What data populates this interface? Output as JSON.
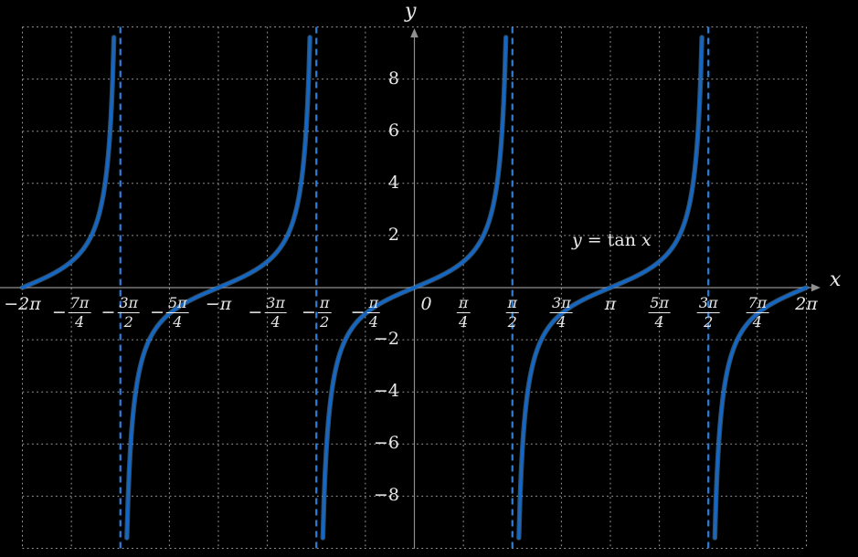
{
  "figure": {
    "background": "#000000",
    "annotation": {
      "lhs": "y",
      "eq": " = ",
      "func": "tan ",
      "arg": "x"
    }
  },
  "chart_data": {
    "type": "line",
    "title": "",
    "function": "y = tan(x)",
    "annotation_text": "y = tan x",
    "annotation_position": "right of y-axis, above x-axis, near x = 3π/4 .. π",
    "xlabel": "x",
    "ylabel": "y",
    "xlim_pi_units": [
      -2,
      2
    ],
    "ylim": [
      -10,
      10
    ],
    "clip_abs_y": 9.6,
    "grid": {
      "on": true,
      "x_step_pi_units": 0.25,
      "y_step": 2,
      "style": "dotted"
    },
    "legend_position": "none",
    "asymptotes_pi_units": [
      -1.5,
      -0.5,
      0.5,
      1.5
    ],
    "branch_domains_pi_units": [
      [
        -2,
        -1.5
      ],
      [
        -1.5,
        -0.5
      ],
      [
        -0.5,
        0.5
      ],
      [
        0.5,
        1.5
      ],
      [
        1.5,
        2
      ]
    ],
    "key_points_pi_units": [
      [
        -2,
        0
      ],
      [
        -1.75,
        1
      ],
      [
        -1.25,
        -1
      ],
      [
        -1,
        0
      ],
      [
        -0.75,
        1
      ],
      [
        -0.25,
        -1
      ],
      [
        0,
        0
      ],
      [
        0.25,
        1
      ],
      [
        0.75,
        -1
      ],
      [
        1,
        0
      ],
      [
        1.25,
        1
      ],
      [
        1.75,
        -1
      ],
      [
        2,
        0
      ]
    ],
    "x_ticks": [
      {
        "k": -8,
        "type": "plain",
        "label": "−2π",
        "text": "−2π"
      },
      {
        "k": -7,
        "type": "frac",
        "label": "−7π/4",
        "sign": "−",
        "num": "7π",
        "den": "4"
      },
      {
        "k": -6,
        "type": "frac",
        "label": "−3π/2",
        "sign": "−",
        "num": "3π",
        "den": "2"
      },
      {
        "k": -5,
        "type": "frac",
        "label": "−5π/4",
        "sign": "−",
        "num": "5π",
        "den": "4"
      },
      {
        "k": -4,
        "type": "plain",
        "label": "−π",
        "text": "−π"
      },
      {
        "k": -3,
        "type": "frac",
        "label": "−3π/4",
        "sign": "−",
        "num": "3π",
        "den": "4"
      },
      {
        "k": -2,
        "type": "frac",
        "label": "−π/2",
        "sign": "−",
        "num": "π",
        "den": "2"
      },
      {
        "k": -1,
        "type": "frac",
        "label": "−π/4",
        "sign": "−",
        "num": "π",
        "den": "4"
      },
      {
        "k": 0,
        "type": "plain",
        "label": "0",
        "text": "0",
        "dx": 13
      },
      {
        "k": 1,
        "type": "frac",
        "label": "π/4",
        "num": "π",
        "den": "4"
      },
      {
        "k": 2,
        "type": "frac",
        "label": "π/2",
        "num": "π",
        "den": "2"
      },
      {
        "k": 3,
        "type": "frac",
        "label": "3π/4",
        "num": "3π",
        "den": "4"
      },
      {
        "k": 4,
        "type": "plain",
        "label": "π",
        "text": "π"
      },
      {
        "k": 5,
        "type": "frac",
        "label": "5π/4",
        "num": "5π",
        "den": "4"
      },
      {
        "k": 6,
        "type": "frac",
        "label": "3π/2",
        "num": "3π",
        "den": "2"
      },
      {
        "k": 7,
        "type": "frac",
        "label": "7π/4",
        "num": "7π",
        "den": "4"
      },
      {
        "k": 8,
        "type": "plain",
        "label": "2π",
        "text": "2π"
      }
    ],
    "y_ticks": [
      {
        "value": 8,
        "label": "8"
      },
      {
        "value": 6,
        "label": "6"
      },
      {
        "value": 4,
        "label": "4"
      },
      {
        "value": 2,
        "label": "2"
      },
      {
        "value": -2,
        "label": "−2"
      },
      {
        "value": -4,
        "label": "−4"
      },
      {
        "value": -6,
        "label": "−6"
      },
      {
        "value": -8,
        "label": "−8"
      }
    ],
    "colors": {
      "curve": "#1467c4",
      "curve_halo": "#6fa8dc",
      "asymptote": "#2f7fd8",
      "grid": "#9b9b9b",
      "axis": "#8f8f8f",
      "text": "#e9e9e9",
      "background": "#000000"
    }
  }
}
